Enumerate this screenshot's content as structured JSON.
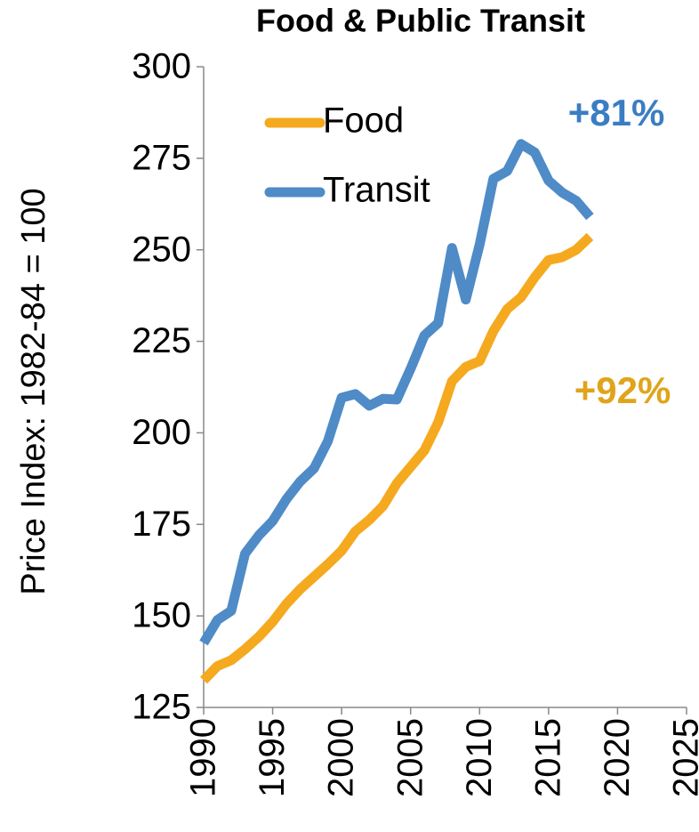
{
  "chart_data": {
    "type": "line",
    "title": "Food & Public Transit",
    "y_label": "Price Index: 1982-84 = 100",
    "x": [
      1990,
      1991,
      1992,
      1993,
      1994,
      1995,
      1996,
      1997,
      1998,
      1999,
      2000,
      2001,
      2002,
      2003,
      2004,
      2005,
      2006,
      2007,
      2008,
      2009,
      2010,
      2011,
      2012,
      2013,
      2014,
      2015,
      2016,
      2017,
      2018
    ],
    "series": [
      {
        "name": "Food",
        "color": "#f5a91f",
        "values": [
          132.4,
          136.3,
          137.9,
          140.9,
          144.3,
          148.4,
          153.3,
          157.3,
          160.7,
          164.1,
          167.8,
          173.1,
          176.2,
          180.0,
          186.2,
          190.7,
          195.2,
          202.9,
          214.1,
          218.0,
          219.6,
          227.8,
          233.8,
          237.0,
          242.5,
          247.2,
          248.0,
          250.0,
          253.6
        ]
      },
      {
        "name": "Transit",
        "color": "#4f8bc7",
        "values": [
          142.6,
          148.9,
          151.4,
          167.0,
          172.0,
          175.9,
          181.9,
          186.7,
          190.3,
          197.7,
          209.6,
          210.6,
          207.4,
          209.3,
          209.1,
          217.5,
          226.6,
          230.0,
          250.5,
          236.4,
          251.4,
          269.4,
          271.5,
          278.9,
          276.6,
          268.9,
          265.6,
          263.4,
          259.0
        ]
      }
    ],
    "annotations": [
      {
        "text": "+81%",
        "color": "#3b7dc2"
      },
      {
        "text": "+92%",
        "color": "#e0a41c"
      }
    ],
    "xlim": [
      1990,
      2025
    ],
    "xticks": [
      1990,
      1995,
      2000,
      2005,
      2010,
      2015,
      2020,
      2025
    ],
    "ylim": [
      125,
      300
    ],
    "yticks": [
      125,
      150,
      175,
      200,
      225,
      250,
      275,
      300
    ],
    "grid": false,
    "legend": "upper left"
  }
}
